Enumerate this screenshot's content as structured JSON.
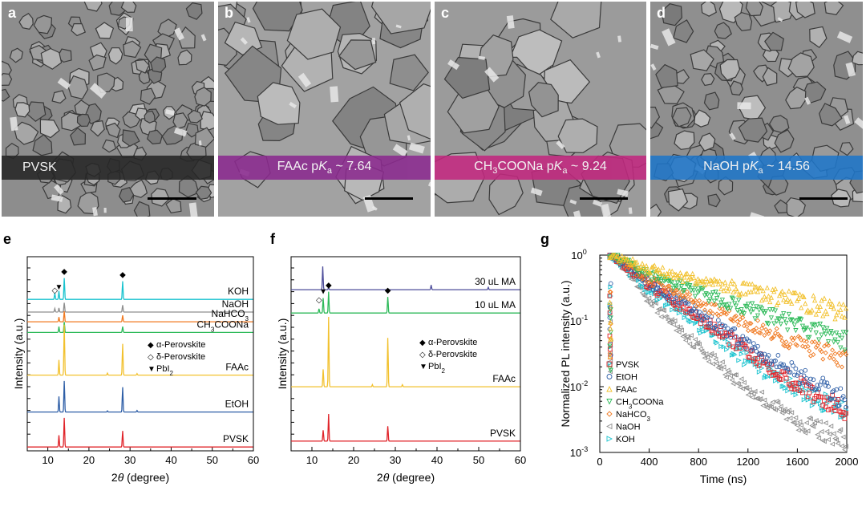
{
  "sem": [
    {
      "letter": "a",
      "label_parts": [
        {
          "t": "PVSK"
        }
      ],
      "band_color": "#262626",
      "image_tone": "#8d8d8d"
    },
    {
      "letter": "b",
      "label_parts": [
        {
          "t": "FAAc p"
        },
        {
          "t": "K",
          "i": true
        },
        {
          "t": "a",
          "sub": true
        },
        {
          "t": " ~ 7.64"
        }
      ],
      "band_color": "#8b2a8f",
      "image_tone": "#a2a2a2"
    },
    {
      "letter": "c",
      "label_parts": [
        {
          "t": "CH"
        },
        {
          "t": "3",
          "sub": true
        },
        {
          "t": "COONa p"
        },
        {
          "t": "K",
          "i": true
        },
        {
          "t": "a",
          "sub": true
        },
        {
          "t": " ~ 9.24"
        }
      ],
      "band_color": "#c2287f",
      "image_tone": "#9b9b9b"
    },
    {
      "letter": "d",
      "label_parts": [
        {
          "t": "NaOH p"
        },
        {
          "t": "K",
          "i": true
        },
        {
          "t": "a",
          "sub": true
        },
        {
          "t": " ~ 14.56"
        }
      ],
      "band_color": "#1f76c9",
      "image_tone": "#8f8f8f"
    }
  ],
  "panel_e": {
    "letter": "e",
    "xlabel_parts": [
      {
        "t": "2"
      },
      {
        "t": "θ",
        "i": true
      },
      {
        "t": " (degree)"
      }
    ],
    "ylabel": "Intensity (a.u.)",
    "xticks": [
      "10",
      "20",
      "30",
      "40",
      "50",
      "60"
    ],
    "legend": [
      {
        "symbol": "◆",
        "parts": [
          {
            "t": "α-Perovskite"
          }
        ]
      },
      {
        "symbol": "◇",
        "parts": [
          {
            "t": "δ-Perovskite"
          }
        ]
      },
      {
        "symbol": "▼",
        "parts": [
          {
            "t": "PbI"
          },
          {
            "t": "2",
            "sub": true
          }
        ]
      }
    ]
  },
  "panel_f": {
    "letter": "f",
    "xlabel_parts": [
      {
        "t": "2"
      },
      {
        "t": "θ",
        "i": true
      },
      {
        "t": " (degree)"
      }
    ],
    "ylabel": "Intensity (a.u.)",
    "xticks": [
      "10",
      "20",
      "30",
      "40",
      "50",
      "60"
    ],
    "legend": [
      {
        "symbol": "◆",
        "parts": [
          {
            "t": "α-Perovskite"
          }
        ]
      },
      {
        "symbol": "◇",
        "parts": [
          {
            "t": "δ-Perovskite"
          }
        ]
      },
      {
        "symbol": "▼",
        "parts": [
          {
            "t": "PbI"
          },
          {
            "t": "2",
            "sub": true
          }
        ]
      }
    ]
  },
  "panel_g": {
    "letter": "g",
    "xlabel": "Time (ns)",
    "ylabel": "Normalized PL intensity (a.u.)",
    "xticks": [
      "0",
      "400",
      "800",
      "1200",
      "1600",
      "2000"
    ],
    "ytick_exponents": [
      "0",
      "-1",
      "-2",
      "-3"
    ],
    "ytick_base": "10"
  },
  "chart_data": [
    {
      "type": "line",
      "panel": "e",
      "xlabel": "2θ (degree)",
      "ylabel": "Intensity (a.u.)",
      "xlim": [
        5,
        60
      ],
      "peak_markers": [
        {
          "symbol": "◆",
          "meaning": "α-Perovskite",
          "x": 14.0
        },
        {
          "symbol": "◆",
          "meaning": "α-Perovskite",
          "x": 28.2
        },
        {
          "symbol": "◇",
          "meaning": "δ-Perovskite",
          "x": 11.7
        },
        {
          "symbol": "▼",
          "meaning": "PbI2",
          "x": 12.7
        }
      ],
      "series": [
        {
          "name": "KOH",
          "color": "#19c3cf",
          "offset": 0.78,
          "scale": 0.11,
          "peaks": [
            [
              11.7,
              0.3
            ],
            [
              12.7,
              0.4
            ],
            [
              14.0,
              1.0
            ],
            [
              28.2,
              0.85
            ]
          ]
        },
        {
          "name": "NaOH",
          "color": "#8f8f8f",
          "offset": 0.715,
          "scale": 0.06,
          "peaks": [
            [
              11.7,
              0.3
            ],
            [
              12.7,
              0.35
            ],
            [
              14.0,
              0.8
            ],
            [
              28.2,
              0.6
            ]
          ]
        },
        {
          "name": "NaHCO3",
          "name_parts": [
            {
              "t": "NaHCO"
            },
            {
              "t": "3",
              "sub": true
            }
          ],
          "color": "#f07a22",
          "offset": 0.665,
          "scale": 0.06,
          "peaks": [
            [
              12.7,
              0.4
            ],
            [
              14.0,
              0.9
            ],
            [
              28.2,
              0.55
            ]
          ]
        },
        {
          "name": "CH3COONa",
          "name_parts": [
            {
              "t": "CH"
            },
            {
              "t": "3",
              "sub": true
            },
            {
              "t": "COONa"
            }
          ],
          "color": "#2fba5a",
          "offset": 0.61,
          "scale": 0.06,
          "peaks": [
            [
              12.7,
              0.5
            ],
            [
              14.0,
              0.9
            ],
            [
              28.2,
              0.5
            ]
          ]
        },
        {
          "name": "FAAc",
          "color": "#f2c12e",
          "offset": 0.39,
          "scale": 0.26,
          "peaks": [
            [
              12.7,
              0.3
            ],
            [
              14.0,
              1.0
            ],
            [
              24.5,
              0.04
            ],
            [
              28.2,
              0.62
            ],
            [
              31.7,
              0.03
            ]
          ]
        },
        {
          "name": "EtOH",
          "color": "#2f5fa7",
          "offset": 0.2,
          "scale": 0.16,
          "peaks": [
            [
              12.7,
              0.5
            ],
            [
              14.0,
              1.0
            ],
            [
              24.5,
              0.04
            ],
            [
              28.2,
              0.8
            ],
            [
              31.7,
              0.05
            ]
          ]
        },
        {
          "name": "PVSK",
          "color": "#e0242a",
          "offset": 0.02,
          "scale": 0.15,
          "peaks": [
            [
              12.7,
              0.4
            ],
            [
              14.0,
              1.0
            ],
            [
              28.2,
              0.55
            ]
          ]
        }
      ]
    },
    {
      "type": "line",
      "panel": "f",
      "xlabel": "2θ (degree)",
      "ylabel": "Intensity (a.u.)",
      "xlim": [
        5,
        60
      ],
      "peak_markers": [
        {
          "symbol": "◇",
          "meaning": "δ-Perovskite",
          "x": 11.7
        },
        {
          "symbol": "▼",
          "meaning": "PbI2",
          "x": 12.7
        },
        {
          "symbol": "◆",
          "meaning": "α-Perovskite",
          "x": 14.0
        },
        {
          "symbol": "◆",
          "meaning": "α-Perovskite",
          "x": 28.2
        }
      ],
      "series": [
        {
          "name": "30 uL MA",
          "color": "#4c4c9a",
          "offset": 0.83,
          "scale": 0.12,
          "peaks": [
            [
              12.6,
              1.0
            ],
            [
              14.0,
              0.1
            ],
            [
              38.6,
              0.2
            ],
            [
              52.3,
              0.1
            ]
          ]
        },
        {
          "name": "10 uL MA",
          "color": "#2fba5a",
          "offset": 0.71,
          "scale": 0.11,
          "peaks": [
            [
              11.7,
              0.2
            ],
            [
              12.7,
              0.7
            ],
            [
              14.0,
              1.0
            ],
            [
              28.2,
              0.75
            ]
          ]
        },
        {
          "name": "FAAc",
          "color": "#f2c12e",
          "offset": 0.33,
          "scale": 0.36,
          "peaks": [
            [
              12.7,
              0.25
            ],
            [
              14.0,
              1.0
            ],
            [
              24.5,
              0.03
            ],
            [
              28.2,
              0.7
            ],
            [
              31.7,
              0.03
            ]
          ]
        },
        {
          "name": "PVSK",
          "color": "#e0242a",
          "offset": 0.05,
          "scale": 0.14,
          "peaks": [
            [
              12.7,
              0.4
            ],
            [
              14.0,
              1.0
            ],
            [
              28.2,
              0.55
            ]
          ]
        }
      ]
    },
    {
      "type": "scatter",
      "panel": "g",
      "xlabel": "Time (ns)",
      "ylabel": "Normalized PL intensity (a.u.)",
      "xlim": [
        0,
        2000
      ],
      "ylim": [
        0.001,
        1
      ],
      "yscale": "log",
      "legend_position": "left",
      "series": [
        {
          "name": "PVSK",
          "color": "#e0242a",
          "marker": "square",
          "t": [
            100,
            400,
            800,
            1200,
            1600,
            2000
          ],
          "y": [
            1.0,
            0.35,
            0.11,
            0.035,
            0.011,
            0.004
          ]
        },
        {
          "name": "EtOH",
          "color": "#2f5fa7",
          "marker": "circle",
          "t": [
            100,
            400,
            800,
            1200,
            1600,
            2000
          ],
          "y": [
            1.0,
            0.38,
            0.13,
            0.045,
            0.016,
            0.006
          ]
        },
        {
          "name": "FAAc",
          "color": "#f2c12e",
          "marker": "triangle-up",
          "t": [
            100,
            400,
            800,
            1200,
            1600,
            2000
          ],
          "y": [
            1.0,
            0.62,
            0.42,
            0.29,
            0.2,
            0.14
          ]
        },
        {
          "name": "CH3COONa",
          "name_parts": [
            {
              "t": "CH"
            },
            {
              "t": "3",
              "sub": true
            },
            {
              "t": "COONa"
            }
          ],
          "color": "#2fba5a",
          "marker": "triangle-down",
          "t": [
            100,
            400,
            800,
            1200,
            1600,
            2000
          ],
          "y": [
            1.0,
            0.5,
            0.27,
            0.15,
            0.085,
            0.05
          ]
        },
        {
          "name": "NaHCO3",
          "name_parts": [
            {
              "t": "NaHCO"
            },
            {
              "t": "3",
              "sub": true
            }
          ],
          "color": "#f07a22",
          "marker": "diamond",
          "t": [
            100,
            400,
            800,
            1200,
            1600,
            2000
          ],
          "y": [
            1.0,
            0.42,
            0.19,
            0.09,
            0.045,
            0.025
          ]
        },
        {
          "name": "NaOH",
          "color": "#8f8f8f",
          "marker": "triangle-left",
          "t": [
            100,
            400,
            800,
            1200,
            1600,
            2000
          ],
          "y": [
            1.0,
            0.2,
            0.04,
            0.009,
            0.003,
            0.0015
          ]
        },
        {
          "name": "KOH",
          "color": "#19c3cf",
          "marker": "triangle-right",
          "t": [
            100,
            400,
            800,
            1200,
            1600,
            2000
          ],
          "y": [
            1.0,
            0.3,
            0.085,
            0.025,
            0.009,
            0.004
          ]
        }
      ]
    }
  ]
}
